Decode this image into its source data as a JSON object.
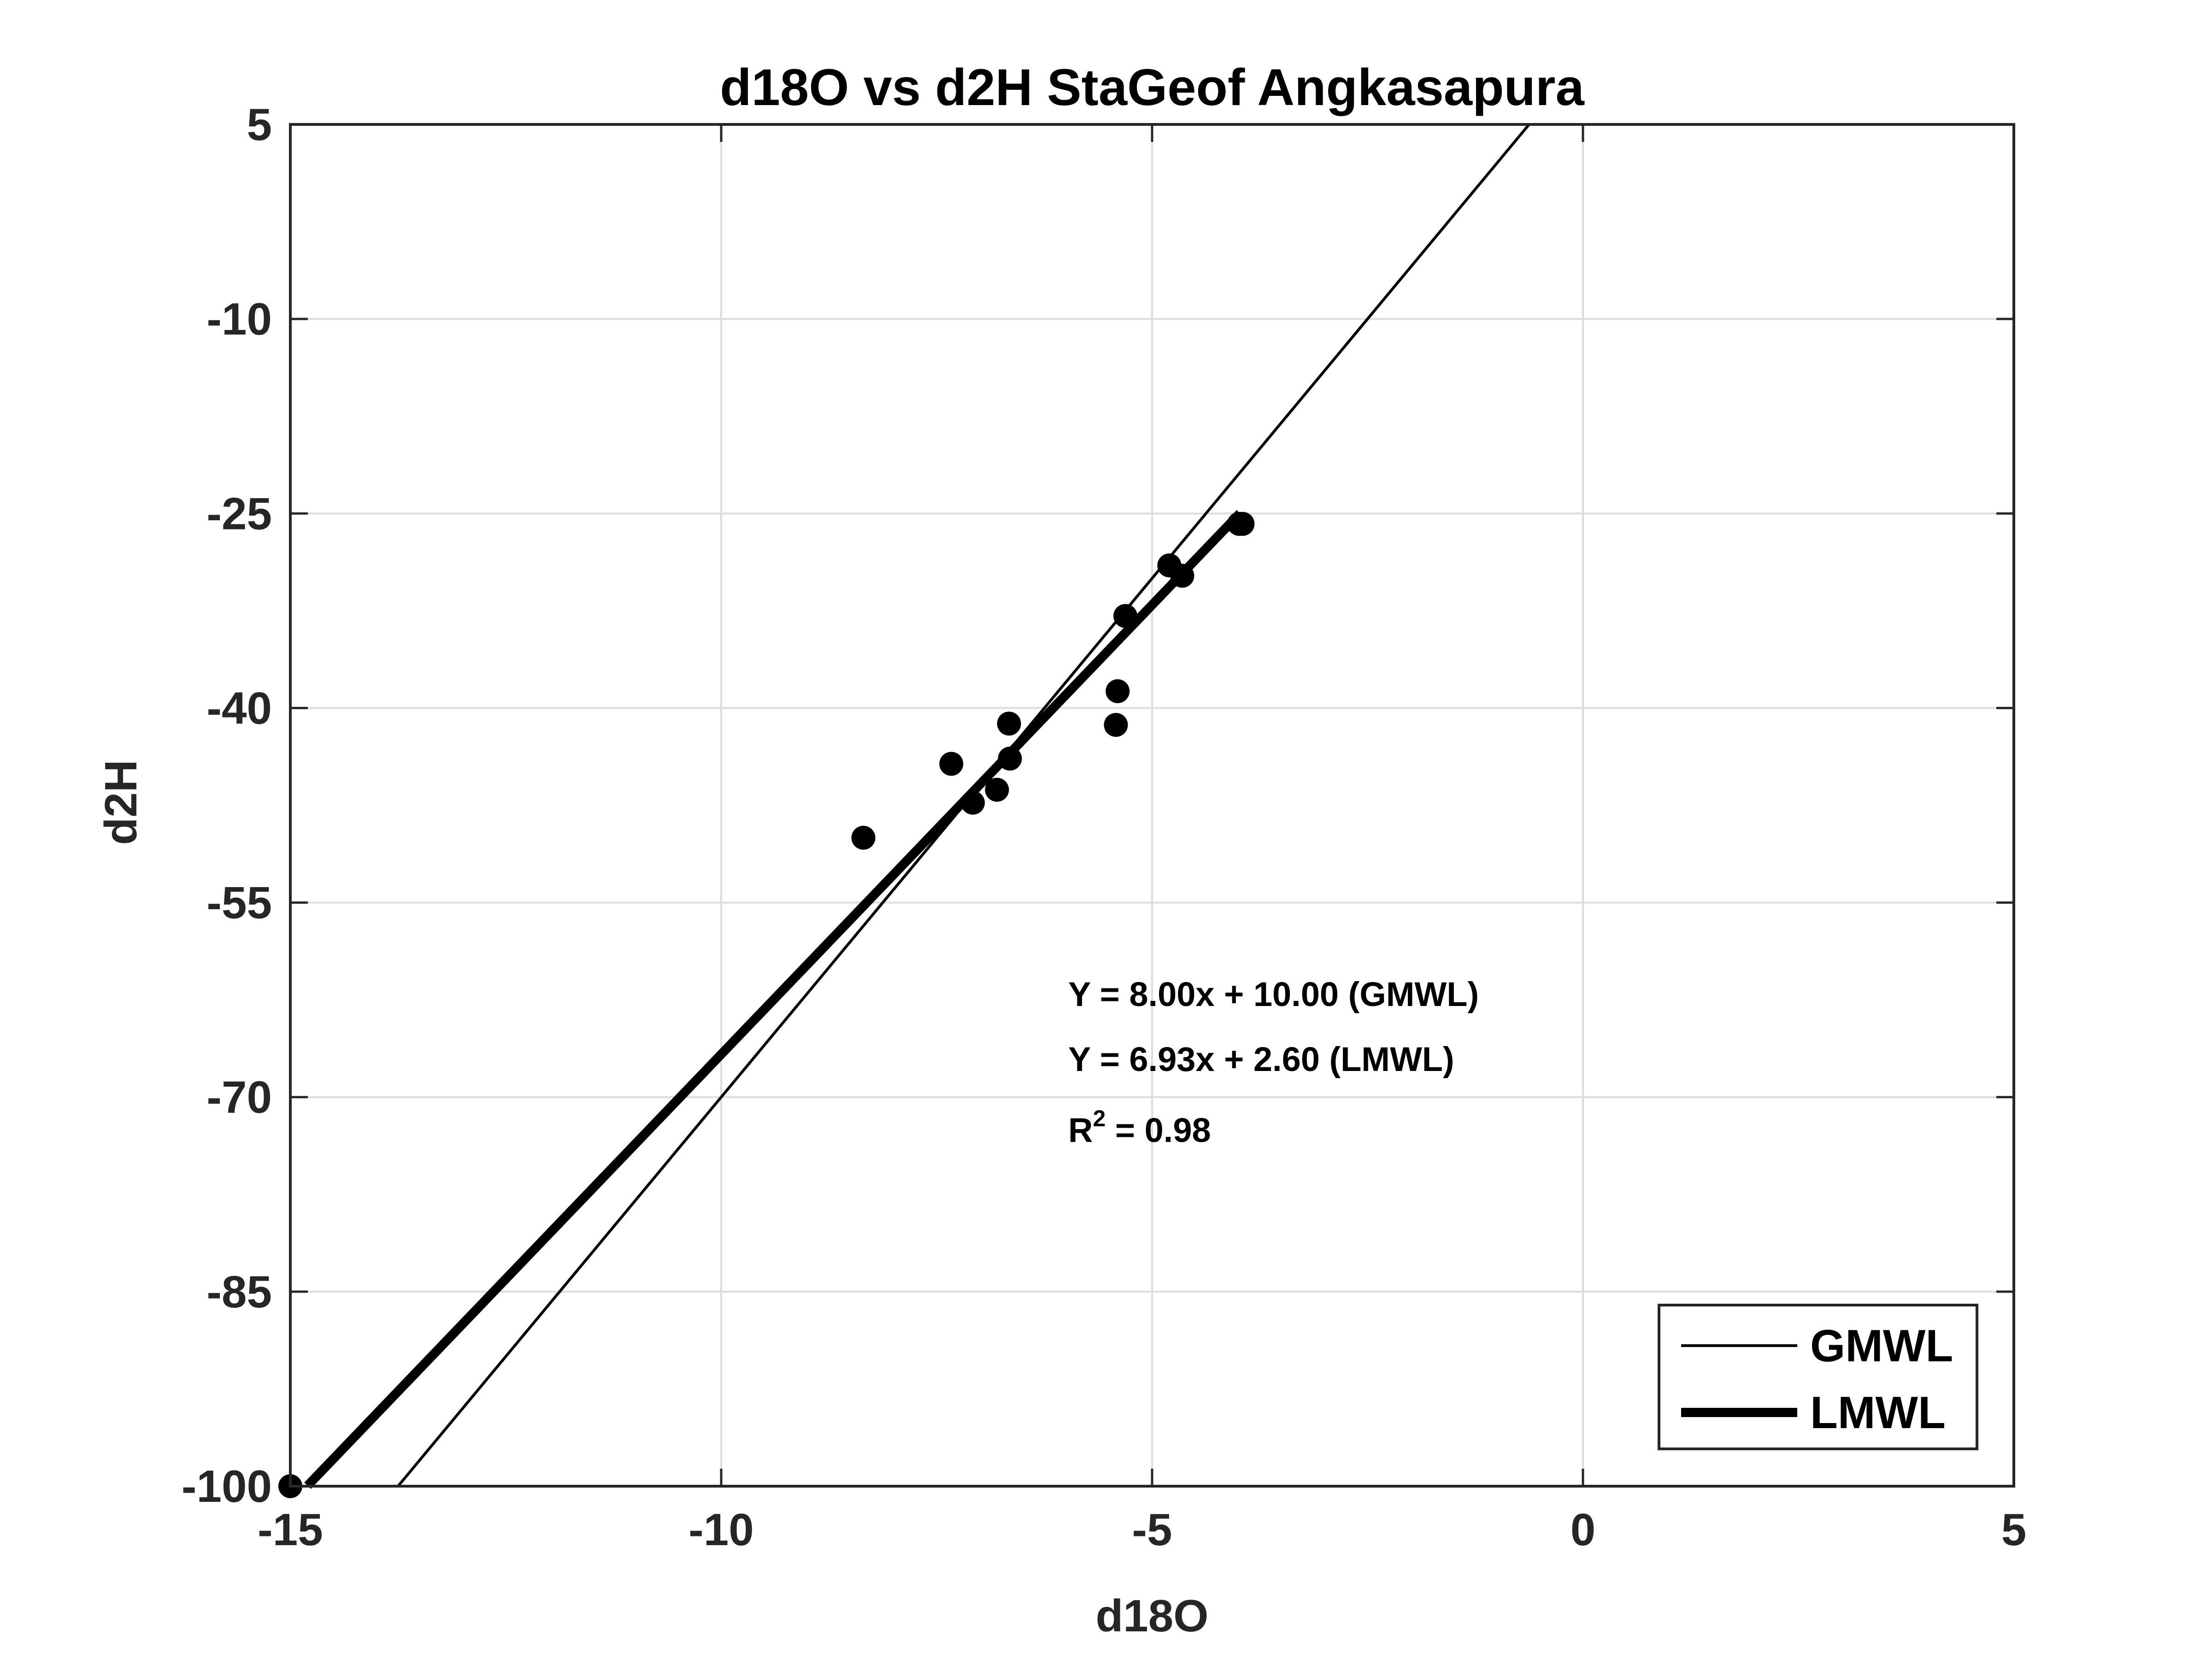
{
  "chart_data": {
    "type": "scatter",
    "title": "d18O vs d2H StaGeof Angkasapura",
    "xlabel": "d18O",
    "ylabel": "d2H",
    "xlim": [
      -15,
      5
    ],
    "ylim": [
      -100,
      5
    ],
    "xticks": [
      -15,
      -10,
      -5,
      0,
      5
    ],
    "yticks": [
      -100,
      -85,
      -70,
      -55,
      -40,
      -25,
      -10,
      5
    ],
    "x_tick_labels": [
      "-15",
      "-10",
      "-5",
      "0",
      "5"
    ],
    "y_tick_labels": [
      "-100",
      "-85",
      "-70",
      "-55",
      "-40",
      "-25",
      "-10",
      "5"
    ],
    "grid": true,
    "series": [
      {
        "kind": "scatter",
        "marker": "filled-circle",
        "color": "#000000",
        "points": [
          {
            "x": -15.0,
            "y": -100.0
          },
          {
            "x": -8.35,
            "y": -50.0
          },
          {
            "x": -7.33,
            "y": -44.3
          },
          {
            "x": -7.08,
            "y": -47.3
          },
          {
            "x": -6.8,
            "y": -46.3
          },
          {
            "x": -6.66,
            "y": -41.2
          },
          {
            "x": -6.65,
            "y": -43.9
          },
          {
            "x": -5.4,
            "y": -38.7
          },
          {
            "x": -5.42,
            "y": -41.3
          },
          {
            "x": -5.31,
            "y": -32.9
          },
          {
            "x": -4.8,
            "y": -29.0
          },
          {
            "x": -4.65,
            "y": -29.8
          },
          {
            "x": -3.99,
            "y": -25.8
          },
          {
            "x": -3.95,
            "y": -25.8
          }
        ]
      },
      {
        "name": "GMWL",
        "kind": "line",
        "slope": 8.0,
        "intercept": 10.0,
        "x_range": [
          -13.75,
          -0.625
        ],
        "color": "#000000",
        "line_style": "thin"
      },
      {
        "name": "LMWL",
        "kind": "line",
        "slope": 6.93,
        "intercept": 2.6,
        "x_range": [
          -14.8,
          -3.98
        ],
        "color": "#000000",
        "line_style": "thick"
      }
    ],
    "annotations": [
      "Y = 8.00x + 10.00 (GMWL)",
      "Y = 6.93x + 2.60 (LMWL)"
    ],
    "r2_annotation": {
      "base": "R",
      "superscript": "2",
      "rest": " = 0.98"
    },
    "legend": {
      "position": "bottom-right",
      "entries": [
        "GMWL",
        "LMWL"
      ]
    }
  }
}
